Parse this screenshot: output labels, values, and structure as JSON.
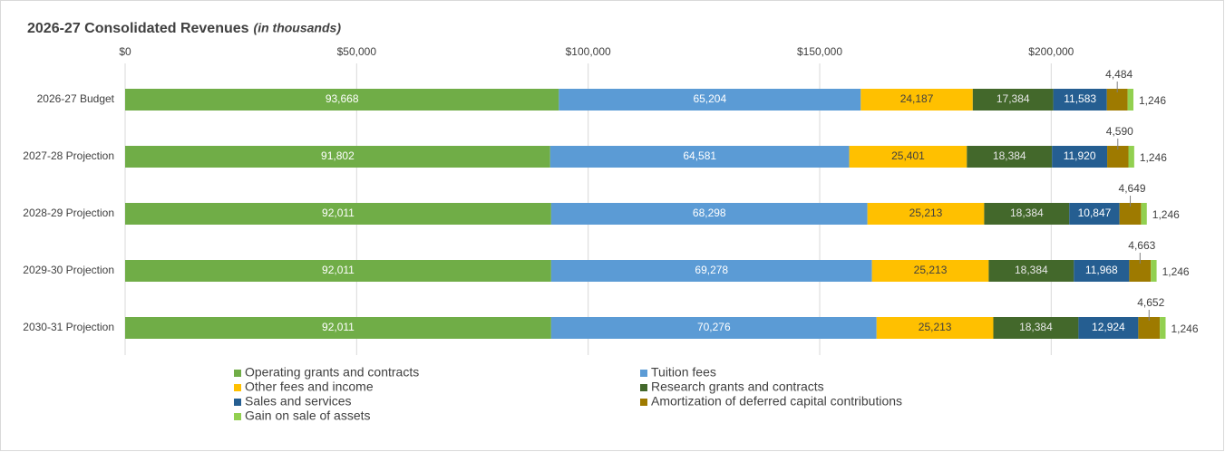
{
  "chart_data": {
    "type": "bar",
    "orientation": "horizontal",
    "stacked": true,
    "title": "2026-27 Consolidated Revenues",
    "subtitle": "(in thousands)",
    "categories": [
      "2026-27 Budget",
      "2027-28 Projection",
      "2028-29 Projection",
      "2029-30 Projection",
      "2030-31 Projection"
    ],
    "xlim": [
      0,
      225000
    ],
    "xticks": [
      {
        "value": 0,
        "label": "$0"
      },
      {
        "value": 50000,
        "label": "$50,000"
      },
      {
        "value": 100000,
        "label": "$100,000"
      },
      {
        "value": 150000,
        "label": "$150,000"
      },
      {
        "value": 200000,
        "label": "$200,000"
      }
    ],
    "grid": true,
    "legend": "bottom",
    "series": [
      {
        "name": "Operating grants and contracts",
        "color": "#70ad47",
        "label_color": "#ffffff",
        "values": [
          93668,
          91802,
          92011,
          92011,
          92011
        ],
        "value_labels": [
          "93,668",
          "91,802",
          "92,011",
          "92,011",
          "92,011"
        ]
      },
      {
        "name": "Tuition fees",
        "color": "#5b9bd5",
        "label_color": "#ffffff",
        "values": [
          65204,
          64581,
          68298,
          69278,
          70276
        ],
        "value_labels": [
          "65,204",
          "64,581",
          "68,298",
          "69,278",
          "70,276"
        ]
      },
      {
        "name": "Other fees and income",
        "color": "#ffc000",
        "label_color": "#404040",
        "values": [
          24187,
          25401,
          25213,
          25213,
          25213
        ],
        "value_labels": [
          "24,187",
          "25,401",
          "25,213",
          "25,213",
          "25,213"
        ]
      },
      {
        "name": "Research grants and contracts",
        "color": "#43682b",
        "label_color": "#e8e8e8",
        "values": [
          17384,
          18384,
          18384,
          18384,
          18384
        ],
        "value_labels": [
          "17,384",
          "18,384",
          "18,384",
          "18,384",
          "18,384"
        ]
      },
      {
        "name": "Sales and services",
        "color": "#255e91",
        "label_color": "#ffffff",
        "values": [
          11583,
          11920,
          10847,
          11968,
          12924
        ],
        "value_labels": [
          "11,583",
          "11,920",
          "10,847",
          "11,968",
          "12,924"
        ]
      },
      {
        "name": "Amortization of deferred capital contributions",
        "color": "#9e7a00",
        "label_color": "#404040",
        "values": [
          4484,
          4590,
          4649,
          4663,
          4652
        ],
        "value_labels": [
          "4,484",
          "4,590",
          "4,649",
          "4,663",
          "4,652"
        ]
      },
      {
        "name": "Gain on sale of assets",
        "color": "#92d050",
        "label_color": "#404040",
        "values": [
          1246,
          1246,
          1246,
          1246,
          1246
        ],
        "value_labels": [
          "1,246",
          "1,246",
          "1,246",
          "1,246",
          "1,246"
        ]
      }
    ]
  }
}
